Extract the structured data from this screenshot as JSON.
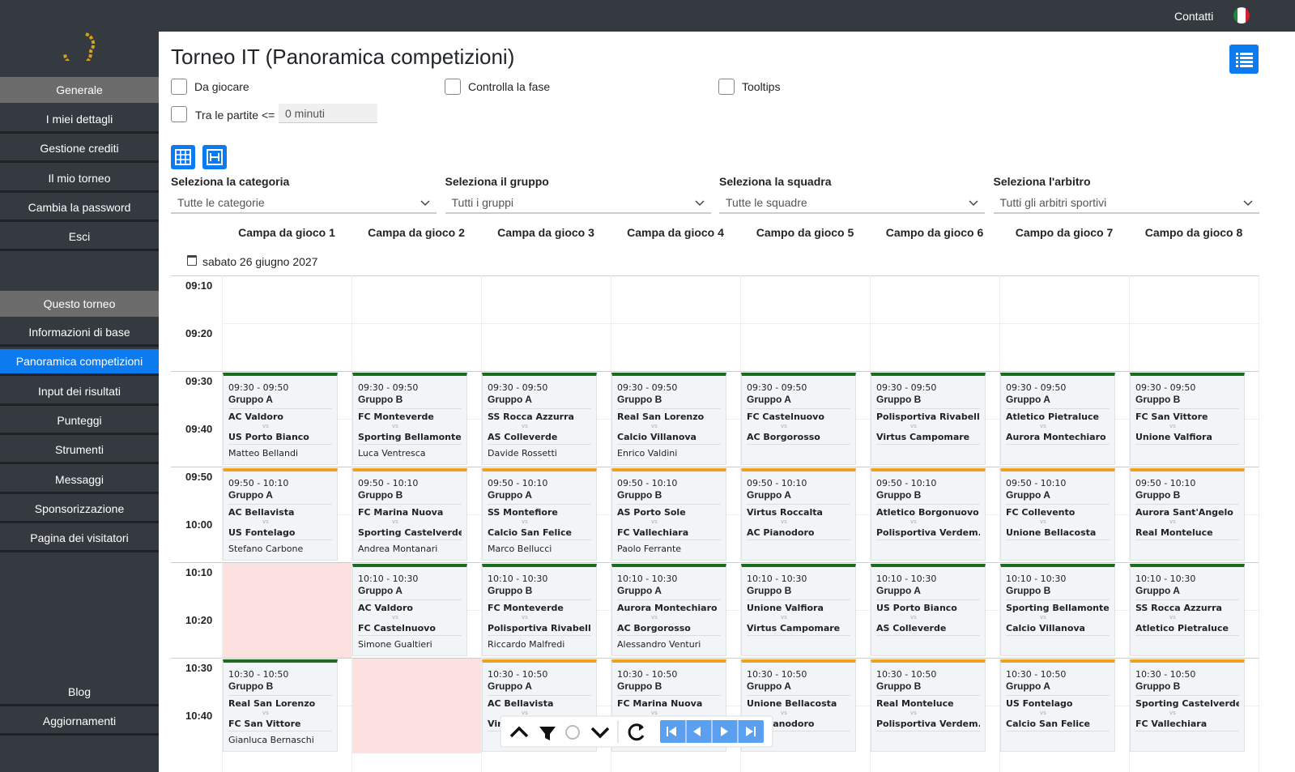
{
  "topbar": {
    "contact": "Contatti"
  },
  "sidebar": {
    "general_header": "Generale",
    "general_items": [
      "I miei dettagli",
      "Gestione crediti",
      "Il mio torneo",
      "Cambia la password",
      "Esci"
    ],
    "tournament_header": "Questo torneo",
    "tournament_items": [
      "Informazioni di base",
      "Panoramica competizioni",
      "Input dei risultati",
      "Punteggi",
      "Strumenti",
      "Messaggi",
      "Sponsorizzazione",
      "Pagina dei visitatori"
    ],
    "bottom_items": [
      "Blog",
      "Aggiornamenti"
    ]
  },
  "page": {
    "title": "Torneo IT (Panoramica competizioni)",
    "options": [
      "Da giocare",
      "Controlla la fase",
      "Tooltips"
    ],
    "gap_label": "Tra le partite <=",
    "gap_value": "0 minuti",
    "filters": [
      {
        "label": "Seleziona la categoria",
        "value": "Tutte le categorie"
      },
      {
        "label": "Seleziona il gruppo",
        "value": "Tutti i gruppi"
      },
      {
        "label": "Seleziona la squadra",
        "value": "Tutte le squadre"
      },
      {
        "label": "Seleziona l'arbitro",
        "value": "Tutti gli arbitri sportivi"
      }
    ],
    "fields": [
      "Campa da gioco 1",
      "Campa da gioco 2",
      "Campa da gioco 3",
      "Campa da gioco 4",
      "Campo da gioco 5",
      "Campo da gioco 6",
      "Campo da gioco 7",
      "Campo da gioco 8"
    ],
    "date": "sabato 26 giugno 2027",
    "times": [
      "09:10",
      "09:20",
      "09:30",
      "09:40",
      "09:50",
      "10:00",
      "10:10",
      "10:20",
      "10:30",
      "10:40"
    ],
    "vs": "vs",
    "slots": [
      {
        "time": "09:30 - 09:50",
        "matches": [
          {
            "group": "Gruppo A",
            "home": "AC Valdoro",
            "away": "US Porto Bianco",
            "referee": "Matteo Bellandi",
            "color": "#1d6b1d"
          },
          {
            "group": "Gruppo B",
            "home": "FC Monteverde",
            "away": "Sporting Bellamonte",
            "referee": "Luca Ventresca",
            "color": "#1d6b1d"
          },
          {
            "group": "Gruppo A",
            "home": "SS Rocca Azzurra",
            "away": "AS Colleverde",
            "referee": "Davide Rossetti",
            "color": "#1d6b1d"
          },
          {
            "group": "Gruppo B",
            "home": "Real San Lorenzo",
            "away": "Calcio Villanova",
            "referee": "Enrico Valdini",
            "color": "#1d6b1d"
          },
          {
            "group": "Gruppo A",
            "home": "FC Castelnuovo",
            "away": "AC Borgorosso",
            "color": "#1d6b1d"
          },
          {
            "group": "Gruppo B",
            "home": "Polisportiva Rivabella",
            "away": "Virtus Campomare",
            "color": "#1d6b1d"
          },
          {
            "group": "Gruppo A",
            "home": "Atletico Pietraluce",
            "away": "Aurora Montechiaro",
            "color": "#1d6b1d"
          },
          {
            "group": "Gruppo B",
            "home": "FC San Vittore",
            "away": "Unione Valfiora",
            "color": "#1d6b1d"
          }
        ]
      },
      {
        "time": "09:50 - 10:10",
        "matches": [
          {
            "group": "Gruppo A",
            "home": "AC Bellavista",
            "away": "US Fontelago",
            "referee": "Stefano Carbone",
            "color": "#f0a020"
          },
          {
            "group": "Gruppo B",
            "home": "FC Marina Nuova",
            "away": "Sporting Castelverde",
            "referee": "Andrea Montanari",
            "color": "#f0a020"
          },
          {
            "group": "Gruppo A",
            "home": "SS Montefiore",
            "away": "Calcio San Felice",
            "referee": "Marco Bellucci",
            "color": "#f0a020"
          },
          {
            "group": "Gruppo B",
            "home": "AS Porto Sole",
            "away": "FC Vallechiara",
            "referee": "Paolo Ferrante",
            "color": "#f0a020"
          },
          {
            "group": "Gruppo A",
            "home": "Virtus Roccalta",
            "away": "AC Pianodoro",
            "color": "#f0a020"
          },
          {
            "group": "Gruppo B",
            "home": "Atletico Borgonuovo",
            "away": "Polisportiva Verdem...",
            "color": "#f0a020"
          },
          {
            "group": "Gruppo A",
            "home": "FC Collevento",
            "away": "Unione Bellacosta",
            "color": "#f0a020"
          },
          {
            "group": "Gruppo B",
            "home": "Aurora Sant'Angelo",
            "away": "Real Monteluce",
            "color": "#f0a020"
          }
        ]
      },
      {
        "time": "10:10 - 10:30",
        "matches": [
          null,
          {
            "group": "Gruppo A",
            "home": "AC Valdoro",
            "away": "FC Castelnuovo",
            "referee": "Simone Gualtieri",
            "color": "#1d6b1d"
          },
          {
            "group": "Gruppo B",
            "home": "FC Monteverde",
            "away": "Polisportiva Rivabella",
            "referee": "Riccardo Malfredi",
            "color": "#1d6b1d"
          },
          {
            "group": "Gruppo A",
            "home": "Aurora Montechiaro",
            "away": "AC Borgorosso",
            "referee": "Alessandro Venturi",
            "color": "#1d6b1d"
          },
          {
            "group": "Gruppo B",
            "home": "Unione Valfiora",
            "away": "Virtus Campomare",
            "color": "#1d6b1d"
          },
          {
            "group": "Gruppo A",
            "home": "US Porto Bianco",
            "away": "AS Colleverde",
            "color": "#1d6b1d"
          },
          {
            "group": "Gruppo B",
            "home": "Sporting Bellamonte",
            "away": "Calcio Villanova",
            "color": "#1d6b1d"
          },
          {
            "group": "Gruppo A",
            "home": "SS Rocca Azzurra",
            "away": "Atletico Pietraluce",
            "color": "#1d6b1d"
          }
        ]
      },
      {
        "time": "10:30 - 10:50",
        "matches": [
          {
            "group": "Gruppo B",
            "home": "Real San Lorenzo",
            "away": "FC San Vittore",
            "referee": "Gianluca Bernaschi",
            "color": "#1d6b1d"
          },
          null,
          {
            "group": "Gruppo A",
            "home": "AC Bellavista",
            "away": "Virtus Roccalta",
            "color": "#f0a020"
          },
          {
            "group": "Gruppo B",
            "home": "FC Marina Nuova",
            "color": "#f0a020"
          },
          {
            "group": "Gruppo A",
            "home": "Unione Bellacosta",
            "away": "AC Pianodoro",
            "color": "#f0a020"
          },
          {
            "group": "Gruppo B",
            "home": "Real Monteluce",
            "away": "Polisportiva Verdem...",
            "color": "#f0a020"
          },
          {
            "group": "Gruppo A",
            "home": "US Fontelago",
            "away": "Calcio San Felice",
            "color": "#f0a020"
          },
          {
            "group": "Gruppo B",
            "home": "Sporting Castelverde",
            "away": "FC Vallechiara",
            "color": "#f0a020"
          }
        ]
      }
    ]
  }
}
